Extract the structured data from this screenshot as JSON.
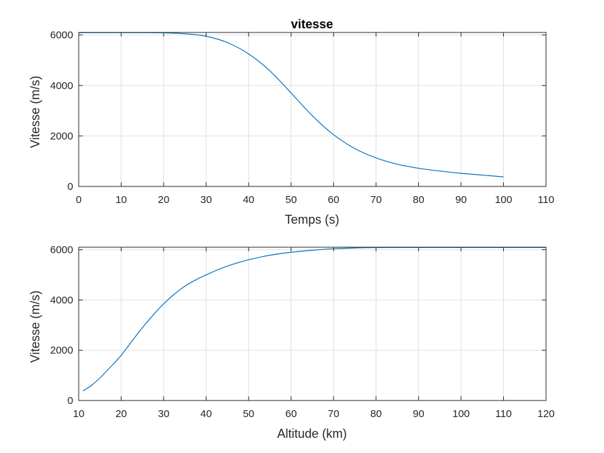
{
  "chart_data": [
    {
      "type": "line",
      "title": "vitesse",
      "xlabel": "Temps (s)",
      "ylabel": "Vitesse (m/s)",
      "xlim": [
        0,
        110
      ],
      "ylim": [
        0,
        6100
      ],
      "xticks": [
        0,
        10,
        20,
        30,
        40,
        50,
        60,
        70,
        80,
        90,
        100,
        110
      ],
      "yticks": [
        0,
        2000,
        4000,
        6000
      ],
      "grid": true,
      "series": [
        {
          "color": "#0072bd",
          "x": [
            0,
            5,
            10,
            15,
            20,
            25,
            30,
            35,
            40,
            45,
            50,
            55,
            60,
            65,
            70,
            75,
            80,
            85,
            90,
            95,
            100
          ],
          "y": [
            6090,
            6092,
            6094,
            6093,
            6085,
            6050,
            5950,
            5700,
            5250,
            4580,
            3700,
            2800,
            2050,
            1500,
            1130,
            880,
            720,
            610,
            520,
            450,
            380
          ]
        }
      ]
    },
    {
      "type": "line",
      "title": "",
      "xlabel": "Altitude (km)",
      "ylabel": "Vitesse (m/s)",
      "xlim": [
        10,
        120
      ],
      "ylim": [
        0,
        6100
      ],
      "xticks": [
        10,
        20,
        30,
        40,
        50,
        60,
        70,
        80,
        90,
        100,
        110,
        120
      ],
      "yticks": [
        0,
        2000,
        4000,
        6000
      ],
      "grid": true,
      "series": [
        {
          "color": "#0072bd",
          "x": [
            11,
            13,
            15,
            17,
            20,
            25,
            30,
            35,
            40,
            45,
            50,
            55,
            60,
            65,
            70,
            75,
            80,
            90,
            100,
            110,
            120
          ],
          "y": [
            380,
            600,
            900,
            1250,
            1800,
            2900,
            3850,
            4550,
            5000,
            5350,
            5600,
            5780,
            5900,
            5980,
            6040,
            6070,
            6085,
            6090,
            6090,
            6090,
            6090
          ]
        }
      ]
    }
  ]
}
